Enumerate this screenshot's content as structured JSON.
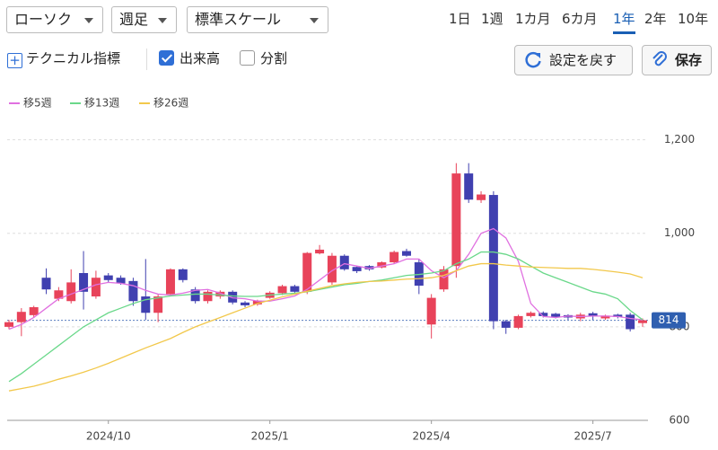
{
  "toolbar": {
    "chart_type": "ローソク",
    "interval": "週足",
    "scale": "標準スケール",
    "periods": [
      "1日",
      "1週",
      "1カ月",
      "6カ月",
      "1年",
      "2年",
      "10年"
    ],
    "selected_period": 4,
    "technical": "テクニカル指標",
    "volume": {
      "label": "出来高",
      "checked": true
    },
    "split": {
      "label": "分割",
      "checked": false
    },
    "reset": "設定を戻す",
    "save": "保存"
  },
  "chart_data": {
    "type": "candlestick",
    "categories": [
      null,
      null,
      null,
      null,
      null,
      null,
      null,
      null,
      "2024/10",
      null,
      null,
      null,
      null,
      null,
      null,
      null,
      null,
      null,
      null,
      null,
      null,
      "2025/1",
      null,
      null,
      null,
      null,
      null,
      null,
      null,
      null,
      null,
      null,
      null,
      null,
      "2025/4",
      null,
      null,
      null,
      null,
      null,
      null,
      null,
      null,
      null,
      null,
      null,
      null,
      "2025/7",
      null,
      null,
      null,
      null
    ],
    "open": [
      800,
      810,
      825,
      905,
      860,
      855,
      915,
      865,
      910,
      905,
      898,
      865,
      830,
      870,
      923,
      880,
      855,
      865,
      875,
      852,
      848,
      862,
      872,
      887,
      875,
      957,
      895,
      952,
      928,
      930,
      927,
      938,
      962,
      938,
      805,
      880,
      930,
      1128,
      1071,
      1082,
      812,
      798,
      823,
      830,
      828,
      825,
      818,
      829,
      818,
      826,
      826,
      808
    ],
    "high": [
      815,
      840,
      845,
      925,
      885,
      923,
      962,
      920,
      915,
      910,
      905,
      945,
      870,
      925,
      925,
      885,
      878,
      878,
      878,
      855,
      858,
      876,
      890,
      890,
      960,
      975,
      958,
      955,
      930,
      932,
      940,
      963,
      967,
      945,
      870,
      930,
      1150,
      1150,
      1090,
      1090,
      815,
      826,
      833,
      833,
      830,
      827,
      830,
      832,
      826,
      828,
      830,
      818
    ],
    "low": [
      795,
      780,
      820,
      870,
      855,
      850,
      837,
      860,
      895,
      890,
      845,
      815,
      810,
      865,
      895,
      850,
      850,
      860,
      848,
      842,
      845,
      860,
      868,
      872,
      870,
      955,
      890,
      920,
      915,
      920,
      925,
      935,
      950,
      870,
      775,
      875,
      905,
      1065,
      1065,
      795,
      785,
      795,
      820,
      820,
      818,
      815,
      812,
      815,
      815,
      818,
      790,
      800
    ],
    "close": [
      810,
      832,
      842,
      880,
      878,
      895,
      875,
      905,
      900,
      893,
      855,
      830,
      865,
      923,
      900,
      855,
      875,
      875,
      852,
      846,
      856,
      873,
      887,
      875,
      958,
      965,
      952,
      923,
      919,
      923,
      938,
      960,
      952,
      888,
      862,
      923,
      1128,
      1072,
      1083,
      812,
      798,
      823,
      830,
      823,
      821,
      820,
      826,
      822,
      824,
      821,
      795,
      814
    ],
    "up_color": "#e8435a",
    "down_color": "#4040b0",
    "series": [
      {
        "name": "移5週",
        "color": "#e070e0",
        "values": [
          795,
          805,
          820,
          840,
          860,
          870,
          880,
          890,
          895,
          893,
          888,
          878,
          870,
          868,
          872,
          878,
          880,
          872,
          862,
          860,
          855,
          855,
          860,
          866,
          880,
          900,
          920,
          935,
          930,
          925,
          930,
          935,
          945,
          945,
          920,
          905,
          920,
          955,
          1000,
          1010,
          990,
          940,
          850,
          822,
          820,
          823,
          822,
          823,
          823,
          822,
          818,
          815
        ]
      },
      {
        "name": "移13週",
        "color": "#6ad88a",
        "values": [
          683,
          700,
          720,
          740,
          760,
          780,
          800,
          815,
          830,
          840,
          850,
          858,
          862,
          866,
          868,
          870,
          870,
          868,
          866,
          865,
          865,
          868,
          870,
          872,
          875,
          880,
          885,
          890,
          893,
          897,
          900,
          905,
          910,
          912,
          915,
          920,
          935,
          945,
          960,
          960,
          955,
          945,
          930,
          915,
          905,
          895,
          885,
          875,
          870,
          860,
          835,
          815
        ]
      },
      {
        "name": "移26週",
        "color": "#f2c84b",
        "values": [
          663,
          668,
          673,
          680,
          688,
          695,
          703,
          712,
          722,
          733,
          744,
          755,
          765,
          775,
          788,
          800,
          810,
          820,
          830,
          840,
          850,
          857,
          864,
          870,
          876,
          882,
          888,
          892,
          895,
          897,
          898,
          900,
          902,
          903,
          905,
          910,
          920,
          930,
          935,
          935,
          932,
          930,
          928,
          927,
          926,
          925,
          925,
          923,
          920,
          917,
          913,
          905
        ]
      }
    ],
    "ylim": [
      600,
      1230
    ],
    "yticks": [
      600,
      800,
      {
        "value": 1000,
        "label": "1,000"
      },
      {
        "value": 1200,
        "label": "1,200"
      }
    ],
    "grid": true,
    "last_price": 814
  }
}
